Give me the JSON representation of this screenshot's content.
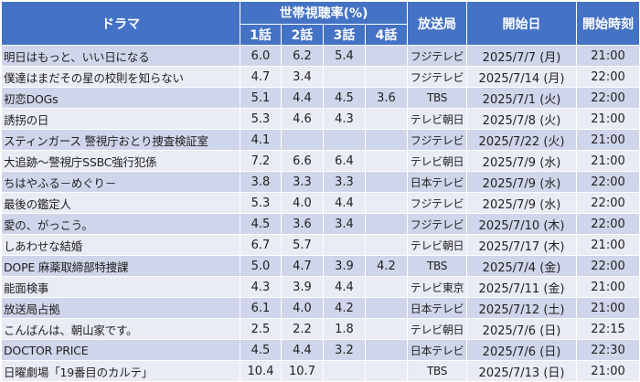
{
  "headers": {
    "title": "ドラマ",
    "ratings_group": "世帯視聴率(%)",
    "episodes": [
      "1話",
      "2話",
      "3話",
      "4話"
    ],
    "network": "放送局",
    "start_date": "開始日",
    "start_time": "開始時刻"
  },
  "rows": [
    {
      "title": "明日はもっと、いい日になる",
      "ep1": "6.0",
      "ep2": "6.2",
      "ep3": "5.4",
      "ep4": "",
      "network": "フジテレビ",
      "date": "2025/7/7 (月)",
      "time": "21:00"
    },
    {
      "title": "僕達はまだその星の校則を知らない",
      "ep1": "4.7",
      "ep2": "3.4",
      "ep3": "",
      "ep4": "",
      "network": "フジテレビ",
      "date": "2025/7/14 (月)",
      "time": "22:00"
    },
    {
      "title": "初恋DOGs",
      "ep1": "5.1",
      "ep2": "4.4",
      "ep3": "4.5",
      "ep4": "3.6",
      "network": "TBS",
      "date": "2025/7/1 (火)",
      "time": "22:00"
    },
    {
      "title": "誘拐の日",
      "ep1": "5.3",
      "ep2": "4.6",
      "ep3": "4.3",
      "ep4": "",
      "network": "テレビ朝日",
      "date": "2025/7/8 (火)",
      "time": "21:00"
    },
    {
      "title": "スティンガース 警視庁おとり捜査検証室",
      "ep1": "4.1",
      "ep2": "",
      "ep3": "",
      "ep4": "",
      "network": "フジテレビ",
      "date": "2025/7/22 (火)",
      "time": "21:00"
    },
    {
      "title": "大追跡～警視庁SSBC強行犯係",
      "ep1": "7.2",
      "ep2": "6.6",
      "ep3": "6.4",
      "ep4": "",
      "network": "テレビ朝日",
      "date": "2025/7/9 (水)",
      "time": "21:00"
    },
    {
      "title": "ちはやふる－めぐり－",
      "ep1": "3.8",
      "ep2": "3.3",
      "ep3": "3.3",
      "ep4": "",
      "network": "日本テレビ",
      "date": "2025/7/9 (水)",
      "time": "22:00"
    },
    {
      "title": "最後の鑑定人",
      "ep1": "5.3",
      "ep2": "4.0",
      "ep3": "4.4",
      "ep4": "",
      "network": "フジテレビ",
      "date": "2025/7/9 (水)",
      "time": "22:00"
    },
    {
      "title": "愛の、がっこう。",
      "ep1": "4.5",
      "ep2": "3.6",
      "ep3": "3.4",
      "ep4": "",
      "network": "フジテレビ",
      "date": "2025/7/10 (木)",
      "time": "22:00"
    },
    {
      "title": "しあわせな結婚",
      "ep1": "6.7",
      "ep2": "5.7",
      "ep3": "",
      "ep4": "",
      "network": "テレビ朝日",
      "date": "2025/7/17 (木)",
      "time": "21:00"
    },
    {
      "title": "DOPE 麻薬取締部特捜課",
      "ep1": "5.0",
      "ep2": "4.7",
      "ep3": "3.9",
      "ep4": "4.2",
      "network": "TBS",
      "date": "2025/7/4 (金)",
      "time": "22:00"
    },
    {
      "title": "能面検事",
      "ep1": "4.3",
      "ep2": "3.9",
      "ep3": "4.4",
      "ep4": "",
      "network": "テレビ東京",
      "date": "2025/7/11 (金)",
      "time": "21:00"
    },
    {
      "title": "放送局占拠",
      "ep1": "6.1",
      "ep2": "4.0",
      "ep3": "4.2",
      "ep4": "",
      "network": "日本テレビ",
      "date": "2025/7/12 (土)",
      "time": "21:00"
    },
    {
      "title": "こんばんは、朝山家です。",
      "ep1": "2.5",
      "ep2": "2.2",
      "ep3": "1.8",
      "ep4": "",
      "network": "テレビ朝日",
      "date": "2025/7/6 (日)",
      "time": "22:15"
    },
    {
      "title": "DOCTOR PRICE",
      "ep1": "4.5",
      "ep2": "4.4",
      "ep3": "3.2",
      "ep4": "",
      "network": "日本テレビ",
      "date": "2025/7/6 (日)",
      "time": "22:30"
    },
    {
      "title": "日曜劇場「19番目のカルテ」",
      "ep1": "10.4",
      "ep2": "10.7",
      "ep3": "",
      "ep4": "",
      "network": "TBS",
      "date": "2025/7/13 (日)",
      "time": "21:00"
    }
  ]
}
